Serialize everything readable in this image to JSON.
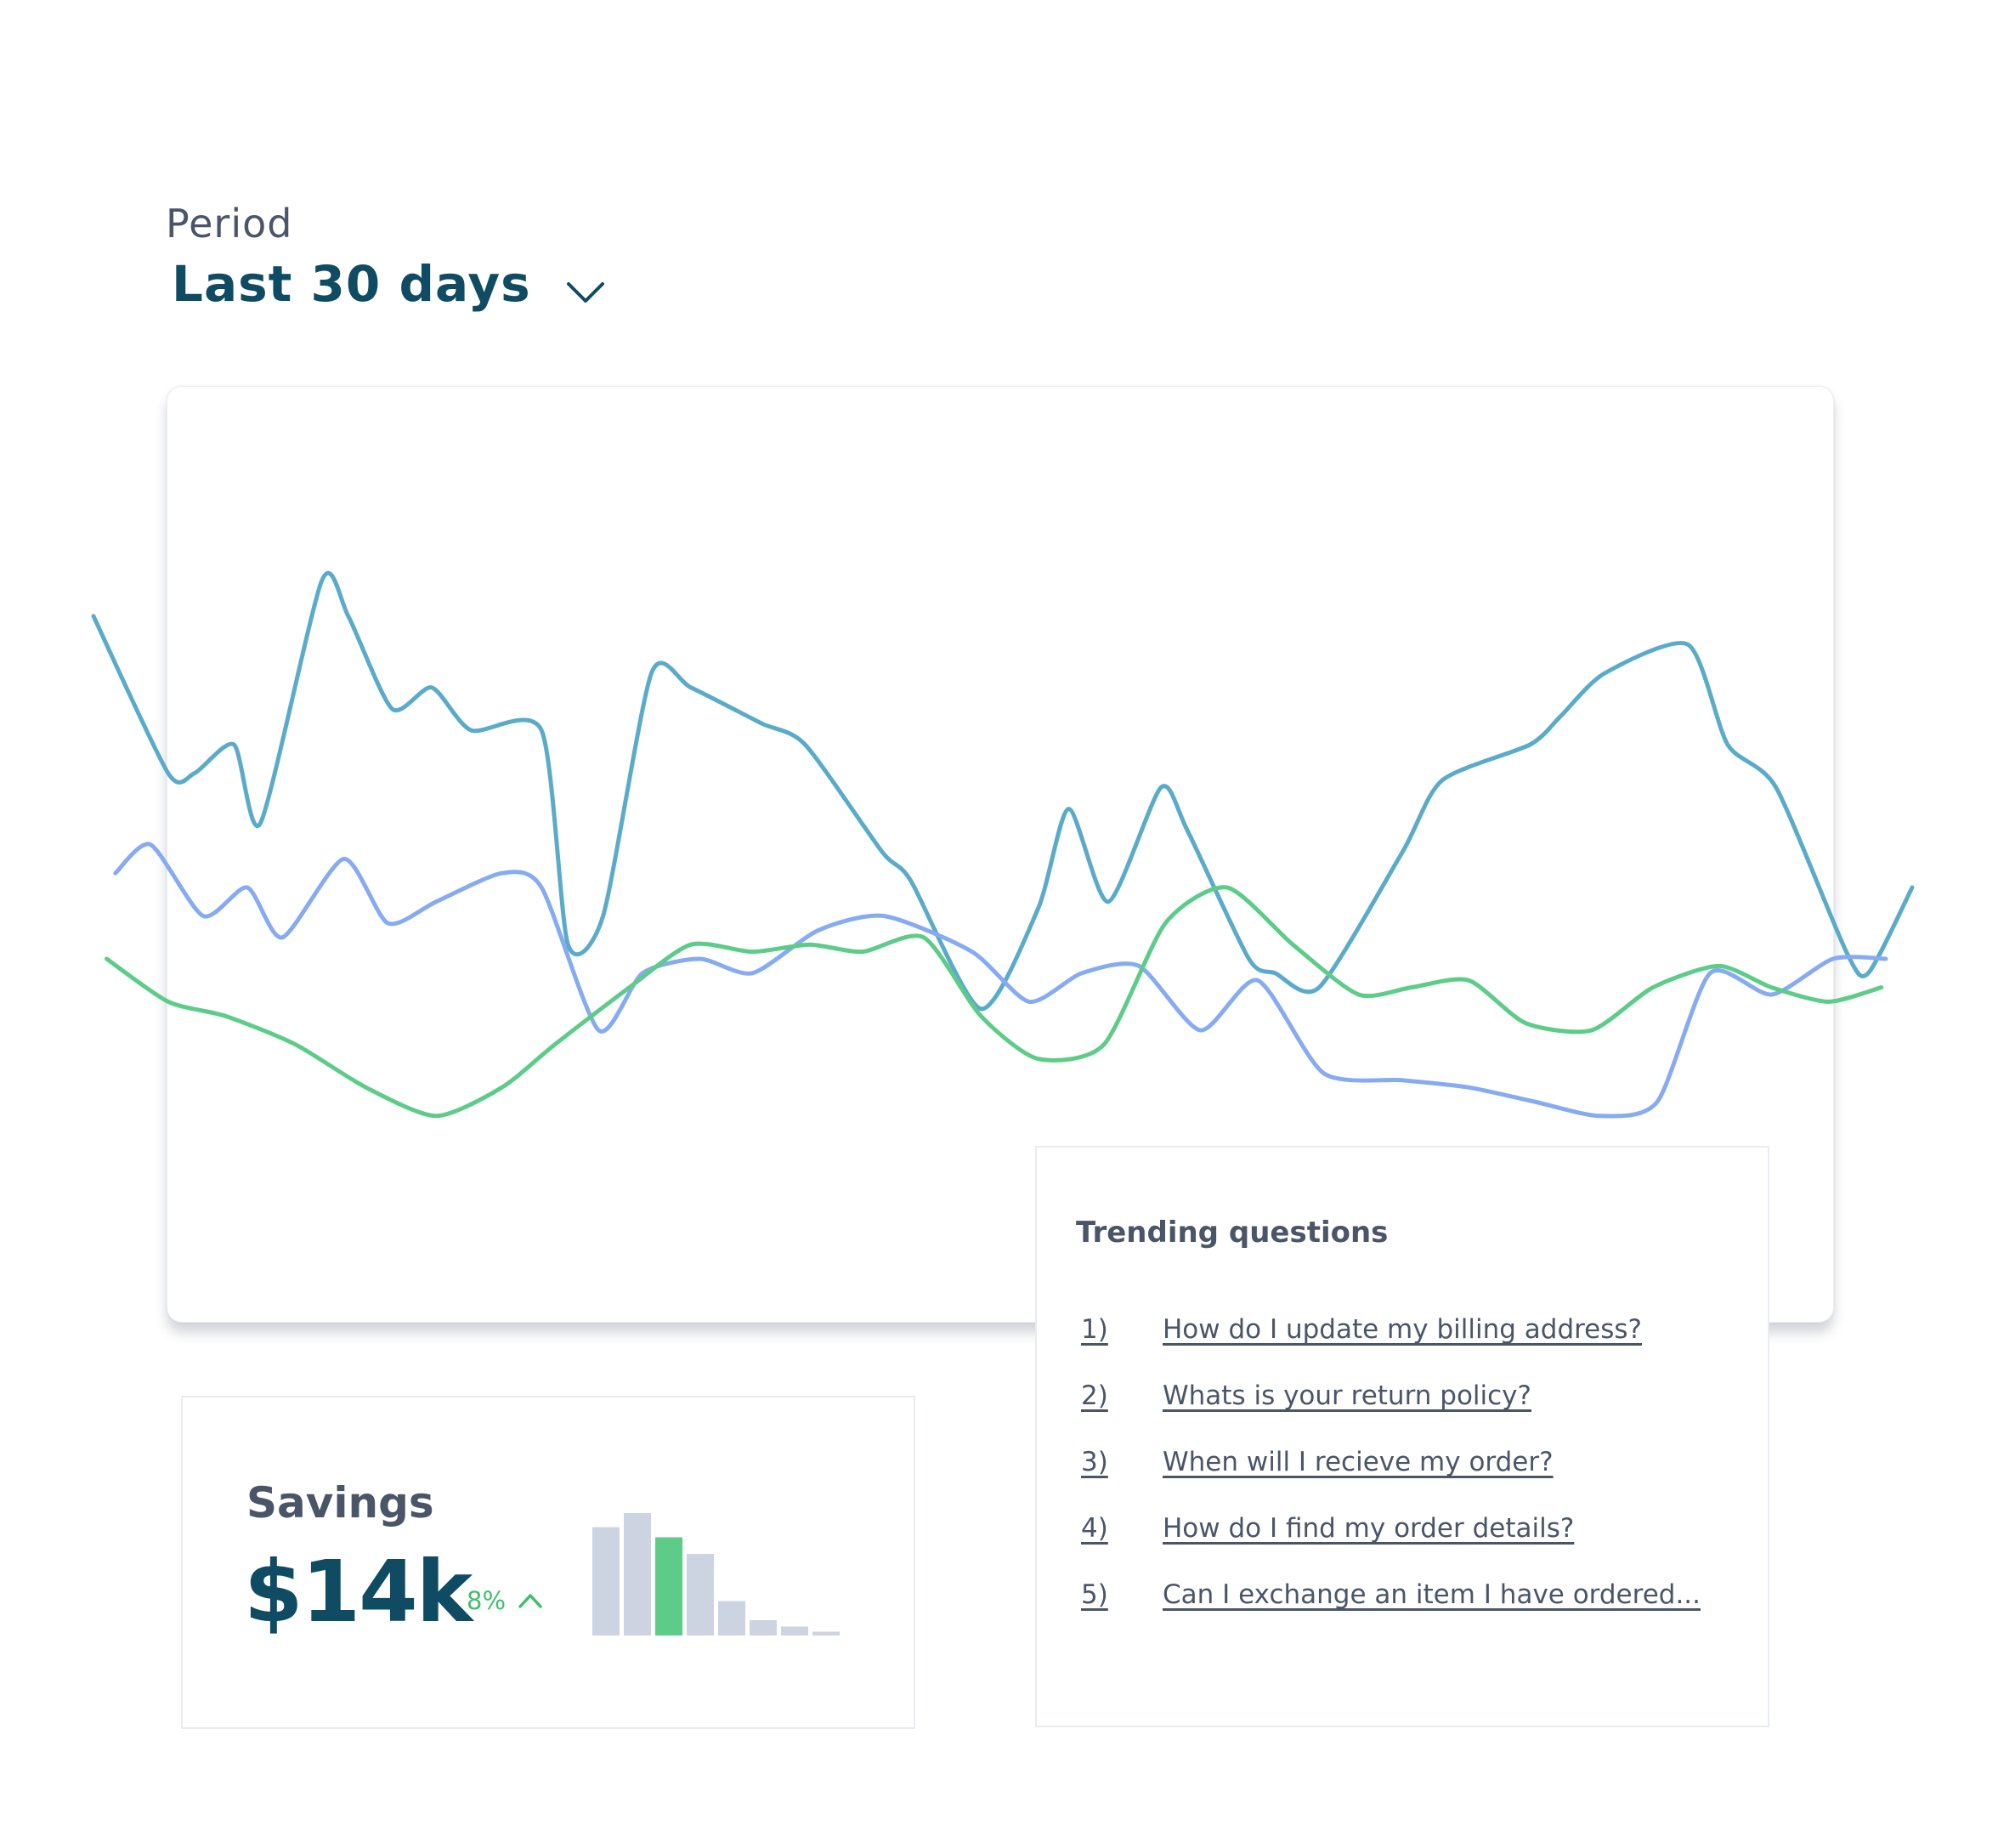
{
  "period": {
    "label": "Period",
    "selected": "Last 30 days"
  },
  "chart_data": {
    "type": "line",
    "title": "",
    "xlabel": "",
    "ylabel": "",
    "ylim": [
      0,
      100
    ],
    "grid": false,
    "legend": "none",
    "series": [
      {
        "color": "#5aabc9",
        "x": [
          0,
          3.4,
          4.6,
          6.4,
          7.6,
          10.4,
          11.6,
          13.6,
          15.4,
          17.2,
          20.4,
          21.6,
          23.2,
          25.4,
          27.2,
          30.4,
          32.4,
          35.9,
          37.2,
          40.4,
          43.0,
          44.4,
          46.2,
          48.6,
          49.8,
          52.6,
          53.8,
          55.8,
          59.6,
          61.4,
          65.4,
          66.8,
          68.8,
          72.6,
          74.4,
          76.6,
          79.8,
          80.8,
          82.8
        ],
        "y": [
          78,
          56,
          56,
          60,
          49,
          83,
          78,
          65,
          68,
          62,
          62,
          32,
          36,
          70,
          68,
          63,
          60,
          45,
          41,
          23,
          37,
          51,
          38,
          54,
          48,
          30,
          28,
          26,
          45,
          55,
          60,
          64,
          70,
          74,
          60,
          54,
          31,
          28,
          40
        ]
      },
      {
        "color": "#86abf2",
        "x": [
          1.0,
          2.6,
          5.0,
          7.0,
          8.6,
          11.4,
          13.4,
          15.6,
          18.6,
          20.4,
          23.0,
          25.0,
          27.6,
          30.0,
          33.0,
          36.0,
          40.0,
          42.6,
          45.0,
          47.6,
          50.4,
          53.0,
          56.0,
          59.6,
          62.6,
          65.6,
          68.6,
          71.2,
          73.6,
          76.4,
          79.2,
          81.6
        ],
        "y": [
          42,
          46,
          36,
          40,
          33,
          44,
          35,
          38,
          42,
          40,
          20,
          28,
          30,
          28,
          34,
          36,
          31,
          24,
          28,
          29,
          20,
          27,
          14,
          13,
          12,
          10,
          8,
          10,
          28,
          25,
          30,
          30
        ]
      },
      {
        "color": "#5dcc88",
        "x": [
          0.6,
          3.4,
          6.0,
          9.2,
          12.4,
          15.6,
          18.6,
          21.0,
          24.4,
          27.2,
          30.0,
          32.6,
          35.0,
          37.8,
          40.4,
          43.0,
          46.0,
          48.8,
          51.6,
          54.6,
          57.6,
          60.0,
          62.6,
          65.2,
          68.2,
          71.0,
          74.0,
          76.4,
          79.0,
          81.4
        ],
        "y": [
          30,
          24,
          22,
          18,
          12,
          8,
          12,
          18,
          26,
          32,
          31,
          32,
          31,
          33,
          22,
          16,
          18,
          35,
          40,
          32,
          25,
          26,
          27,
          21,
          20,
          26,
          29,
          26,
          24,
          26
        ]
      }
    ]
  },
  "savings": {
    "title": "Savings",
    "value": "$14k",
    "change": "8%",
    "change_color": "#3ec16b",
    "trend_icon": "chevron-up-icon",
    "bars": [
      {
        "value": 85,
        "highlighted": false
      },
      {
        "value": 96,
        "highlighted": false
      },
      {
        "value": 77,
        "highlighted": true
      },
      {
        "value": 64,
        "highlighted": false
      },
      {
        "value": 27,
        "highlighted": false
      },
      {
        "value": 12,
        "highlighted": false
      },
      {
        "value": 7,
        "highlighted": false
      },
      {
        "value": 3,
        "highlighted": false
      }
    ],
    "bar_color": "#ccd4e1",
    "highlight_color": "#5dcc88"
  },
  "trending": {
    "title": "Trending questions",
    "items": [
      {
        "num": "1)",
        "text": "How do I update my billing address?"
      },
      {
        "num": "2)",
        "text": "Whats is your return policy?"
      },
      {
        "num": "3)",
        "text": "When will I recieve my order?"
      },
      {
        "num": "4)",
        "text": "How do I find my order details?"
      },
      {
        "num": "5)",
        "text": "Can I exchange an item I have ordered..."
      }
    ]
  }
}
